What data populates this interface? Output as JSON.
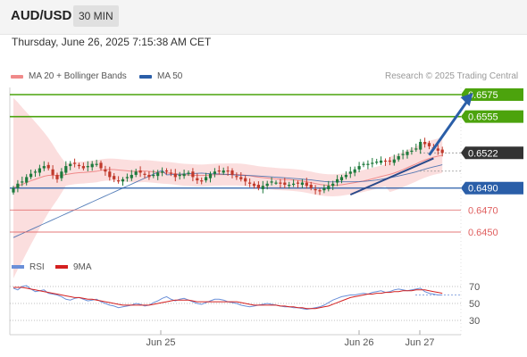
{
  "header": {
    "pair": "AUD/USD",
    "timeframe": "30 MIN",
    "datetime": "Thursday, June 26, 2025 7:15:38 AM CET"
  },
  "legend": {
    "ma20": "MA 20 + Bollinger Bands",
    "ma50": "MA 50",
    "copyright": "Research © 2025 Trading Central"
  },
  "colors": {
    "green": "#4ca30d",
    "blue": "#2a5ea8",
    "red": "#e06060",
    "current": "#333333",
    "bull": "#1e7a3c",
    "bear": "#c0392b",
    "band": "#f9d3d3",
    "rsi": "#6a8fd8",
    "rsi_ma": "#d42020"
  },
  "chart_data": {
    "type": "candlestick",
    "price_levels": [
      {
        "value": 0.6575,
        "label": "0.6575",
        "kind": "resistance",
        "color": "#4ca30d"
      },
      {
        "value": 0.6555,
        "label": "0.6555",
        "kind": "resistance",
        "color": "#4ca30d"
      },
      {
        "value": 0.6522,
        "label": "0.6522",
        "kind": "current",
        "color": "#333333"
      },
      {
        "value": 0.649,
        "label": "0.6490",
        "kind": "pivot",
        "color": "#2a5ea8"
      },
      {
        "value": 0.647,
        "label": "0.6470",
        "kind": "support",
        "color": "#e06060"
      },
      {
        "value": 0.645,
        "label": "0.6450",
        "kind": "support",
        "color": "#e06060"
      }
    ],
    "x_ticks": [
      "Jun 25",
      "Jun 26",
      "Jun 27"
    ],
    "price_ylim": [
      0.643,
      0.659
    ],
    "candle_closes": [
      0.649,
      0.6494,
      0.6496,
      0.65,
      0.6503,
      0.6505,
      0.6508,
      0.651,
      0.6508,
      0.6502,
      0.6498,
      0.6505,
      0.651,
      0.6512,
      0.6512,
      0.651,
      0.6508,
      0.651,
      0.6512,
      0.6512,
      0.6508,
      0.6505,
      0.65,
      0.6498,
      0.6496,
      0.6498,
      0.65,
      0.6502,
      0.6505,
      0.6504,
      0.6502,
      0.65,
      0.6502,
      0.6504,
      0.6505,
      0.6505,
      0.6503,
      0.65,
      0.6502,
      0.6503,
      0.6504,
      0.65,
      0.6497,
      0.6496,
      0.65,
      0.6503,
      0.6505,
      0.6505,
      0.6506,
      0.6505,
      0.6502,
      0.65,
      0.6498,
      0.6496,
      0.6494,
      0.6492,
      0.649,
      0.6492,
      0.6494,
      0.6496,
      0.6495,
      0.6494,
      0.6493,
      0.6493,
      0.6494,
      0.6494,
      0.6495,
      0.6492,
      0.649,
      0.6488,
      0.6487,
      0.649,
      0.6492,
      0.6494,
      0.6498,
      0.65,
      0.6502,
      0.6505,
      0.6507,
      0.651,
      0.6512,
      0.6512,
      0.6513,
      0.6514,
      0.6515,
      0.6514,
      0.6514,
      0.6516,
      0.6519,
      0.6521,
      0.6523,
      0.6524,
      0.6526,
      0.6532,
      0.653,
      0.6528,
      0.6526,
      0.6524,
      0.6522
    ],
    "trendlines": [
      {
        "name": "support",
        "from": [
          77,
          0.6484
        ],
        "to": [
          96,
          0.6517
        ]
      }
    ],
    "projection": {
      "from": [
        95,
        0.652
      ],
      "to": [
        104,
        0.6575
      ]
    },
    "rsi": {
      "labels": [
        "RSI",
        "9MA"
      ],
      "levels": [
        70,
        50,
        30
      ],
      "ylim": [
        15,
        80
      ],
      "rsi_values": [
        68,
        66,
        70,
        71,
        67,
        64,
        65,
        66,
        62,
        61,
        60,
        58,
        55,
        54,
        56,
        57,
        55,
        53,
        54,
        55,
        52,
        50,
        48,
        47,
        45,
        46,
        47,
        48,
        50,
        49,
        47,
        48,
        51,
        53,
        56,
        58,
        55,
        53,
        55,
        56,
        54,
        52,
        50,
        49,
        51,
        53,
        55,
        55,
        54,
        52,
        51,
        50,
        48,
        47,
        46,
        47,
        48,
        49,
        50,
        49,
        48,
        47,
        46,
        46,
        45,
        45,
        44,
        43,
        44,
        45,
        46,
        48,
        51,
        54,
        56,
        58,
        59,
        60,
        60,
        61,
        62,
        61,
        63,
        64,
        65,
        63,
        64,
        66,
        67,
        66,
        65,
        66,
        67,
        68,
        64,
        62,
        61,
        60,
        60
      ],
      "ma_values": [
        69,
        69,
        69,
        68,
        67,
        66,
        65,
        64,
        63,
        62,
        61,
        60,
        59,
        58,
        57,
        57,
        56,
        55,
        55,
        54,
        53,
        52,
        51,
        50,
        49,
        48,
        48,
        48,
        48,
        48,
        48,
        48,
        49,
        50,
        51,
        52,
        53,
        54,
        54,
        54,
        54,
        53,
        52,
        52,
        52,
        52,
        52,
        52,
        52,
        52,
        52,
        52,
        51,
        50,
        49,
        48,
        48,
        48,
        48,
        48,
        48,
        47,
        47,
        46,
        46,
        45,
        45,
        44,
        44,
        44,
        45,
        46,
        47,
        49,
        51,
        53,
        55,
        57,
        58,
        59,
        60,
        61,
        61,
        62,
        62,
        63,
        63,
        64,
        64,
        65,
        65,
        65,
        66,
        66,
        66,
        65,
        64,
        63,
        62
      ]
    }
  }
}
